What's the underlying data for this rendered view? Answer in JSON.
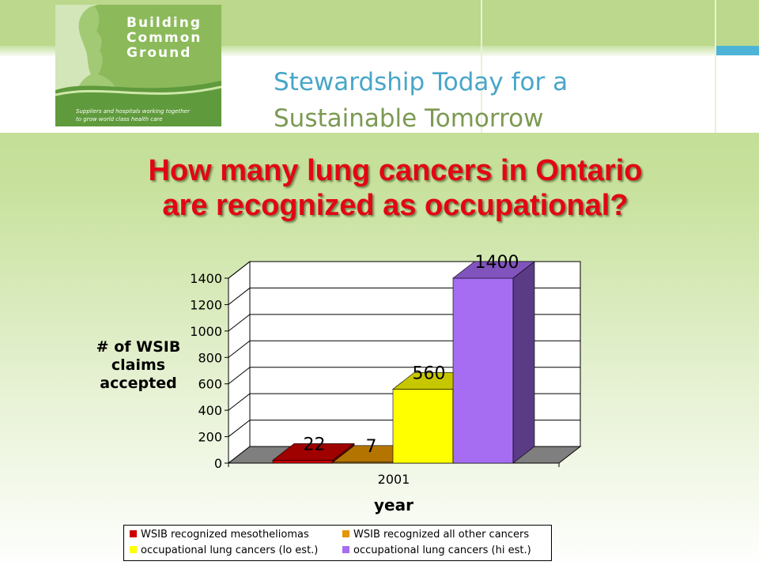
{
  "header": {
    "logo_lines": [
      "Building",
      "Common",
      "Ground"
    ],
    "logo_tagline": [
      "Suppliers and hospitals working together",
      "to grow world class health care"
    ],
    "tagline_line1": "Stewardship Today for a",
    "tagline_line2": "Sustainable Tomorrow",
    "logo_color": "#8cba5a",
    "tagline_line1_color": "#48a6c8",
    "tagline_line2_color": "#7c9a52"
  },
  "slide": {
    "title_line1": "How many lung cancers in Ontario",
    "title_line2": "are recognized as occupational?",
    "title_color": "#e30613"
  },
  "chart_data": {
    "type": "bar",
    "style": "3d-column",
    "categories": [
      "2001"
    ],
    "series": [
      {
        "name": "WSIB recognized mesotheliomas",
        "values": [
          22
        ],
        "color": "#cc0000",
        "label": "22"
      },
      {
        "name": "WSIB recognized all other cancers",
        "values": [
          7
        ],
        "color": "#e69500",
        "label": "7"
      },
      {
        "name": "occupational lung cancers (lo est.)",
        "values": [
          560
        ],
        "color": "#ffff00",
        "label": "560"
      },
      {
        "name": "occupational lung cancers (hi est.)",
        "values": [
          1400
        ],
        "color": "#a66cf2",
        "label": "1400"
      }
    ],
    "xlabel": "year",
    "ylabel_lines": [
      "# of WSIB",
      "claims",
      "accepted"
    ],
    "ylim": [
      0,
      1400
    ],
    "yticks": [
      0,
      200,
      400,
      600,
      800,
      1000,
      1200,
      1400
    ],
    "grid": true,
    "legend_position": "bottom"
  }
}
